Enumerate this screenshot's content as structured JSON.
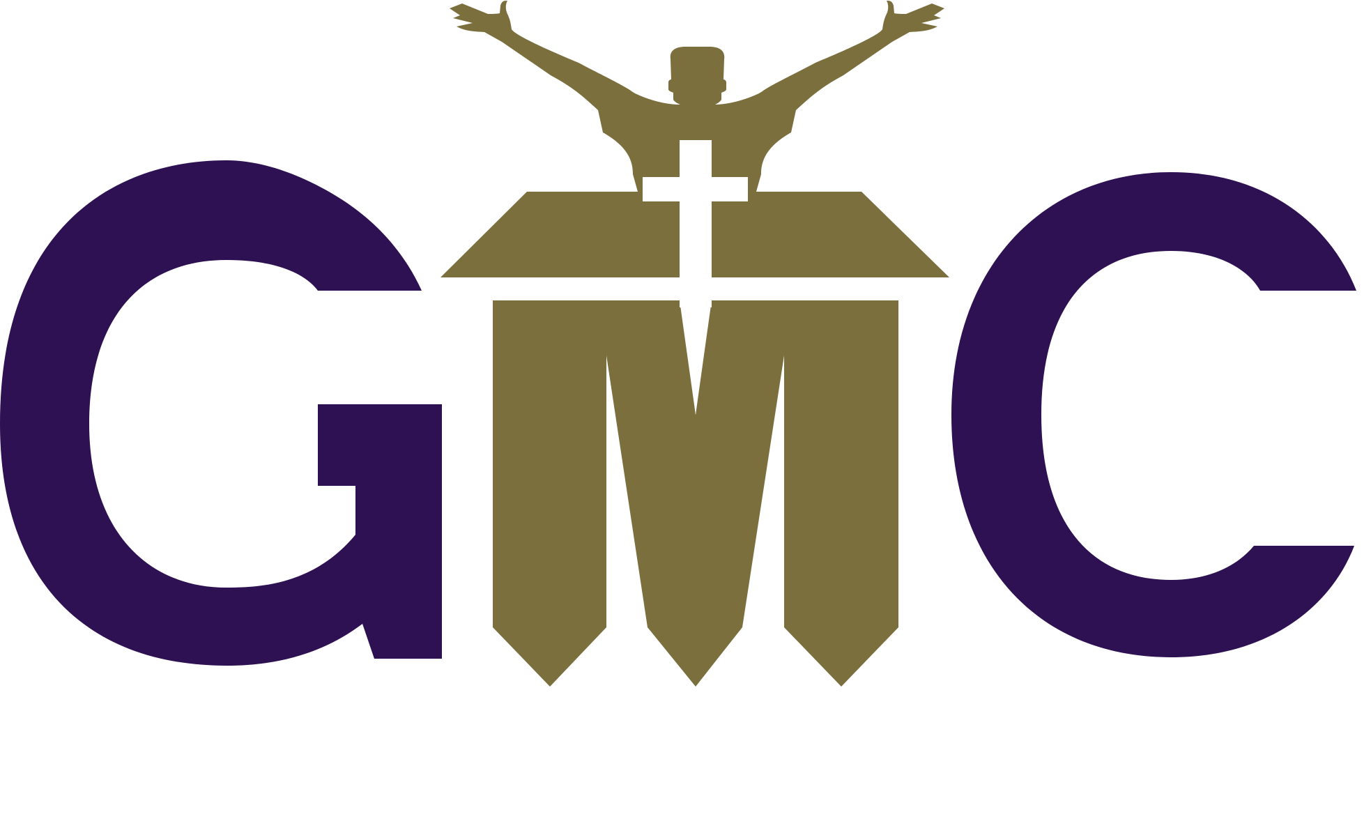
{
  "logo": {
    "wordmark": "GMC",
    "letters": [
      "G",
      "M",
      "C"
    ],
    "colors": {
      "purple": "#2e1152",
      "gold": "#7a6f3d",
      "background": "#ffffff",
      "cross": "#ffffff"
    },
    "icons": [
      "figure-raised-arms-icon",
      "cross-icon"
    ]
  }
}
